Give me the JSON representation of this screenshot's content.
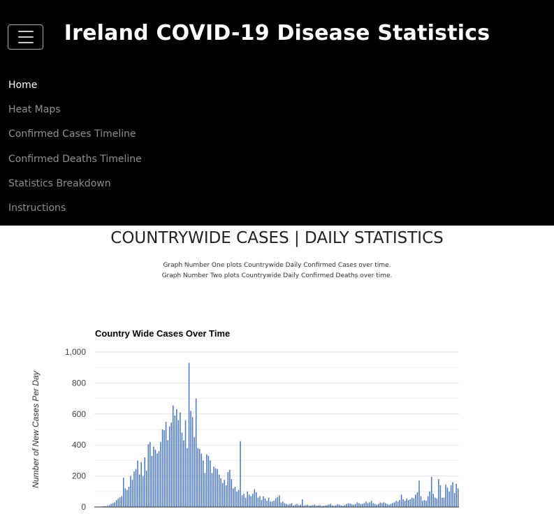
{
  "header": {
    "title": "Ireland COVID-19 Disease Statistics",
    "menu_icon": "hamburger-menu-icon"
  },
  "nav": {
    "items": [
      {
        "label": "Home",
        "active": true
      },
      {
        "label": "Heat Maps"
      },
      {
        "label": "Confirmed Cases Timeline"
      },
      {
        "label": "Confirmed Deaths Timeline"
      },
      {
        "label": "Statistics Breakdown"
      },
      {
        "label": "Instructions"
      }
    ]
  },
  "main": {
    "heading": "COUNTRYWIDE CASES | DAILY STATISTICS",
    "description_line1": "Graph Number One plots Countrywide Daily Confirmed Cases over time.",
    "description_line2": "Graph Number Two plots Countrywide Daily Confirmed Deaths over time."
  },
  "colors": {
    "navbar_bg": "#000000",
    "bar": "#4a77c8",
    "grid": "#e3e3e3"
  },
  "chart_data": {
    "type": "bar",
    "title": "Country Wide Cases Over Time",
    "ylabel": "Number of New Cases Per Day",
    "ylim": [
      0,
      1000
    ],
    "yticks": [
      0,
      200,
      400,
      600,
      800,
      1000
    ],
    "ytick_labels": [
      "0",
      "200",
      "400",
      "600",
      "800",
      "1,000"
    ],
    "series": [
      {
        "values": [
          2,
          1,
          3,
          2,
          4,
          6,
          5,
          8,
          12,
          20,
          25,
          30,
          44,
          55,
          62,
          70,
          190,
          120,
          110,
          130,
          200,
          175,
          230,
          245,
          300,
          210,
          290,
          200,
          320,
          235,
          405,
          420,
          330,
          390,
          370,
          345,
          360,
          420,
          500,
          495,
          550,
          430,
          520,
          545,
          655,
          590,
          630,
          560,
          610,
          480,
          430,
          560,
          380,
          930,
          620,
          580,
          450,
          700,
          380,
          375,
          345,
          300,
          220,
          340,
          330,
          300,
          220,
          260,
          250,
          245,
          210,
          185,
          155,
          175,
          140,
          225,
          240,
          180,
          120,
          130,
          100,
          110,
          425,
          75,
          85,
          60,
          100,
          80,
          70,
          85,
          115,
          95,
          60,
          70,
          45,
          70,
          55,
          40,
          60,
          35,
          35,
          40,
          55,
          65,
          75,
          30,
          35,
          25,
          20,
          15,
          20,
          25,
          10,
          15,
          20,
          12,
          15,
          50,
          10,
          12,
          15,
          8,
          10,
          12,
          15,
          8,
          10,
          12,
          6,
          8,
          10,
          12,
          15,
          20,
          10,
          8,
          12,
          18,
          15,
          10,
          8,
          12,
          20,
          25,
          22,
          18,
          15,
          20,
          30,
          25,
          18,
          20,
          25,
          35,
          25,
          30,
          40,
          25,
          20,
          15,
          20,
          30,
          25,
          30,
          25,
          20,
          15,
          20,
          25,
          30,
          40,
          35,
          45,
          80,
          50,
          40,
          55,
          45,
          50,
          60,
          55,
          80,
          95,
          170,
          70,
          40,
          45,
          40,
          70,
          100,
          195,
          85,
          60,
          55,
          180,
          140,
          60,
          60,
          145,
          125,
          100,
          140,
          160,
          90,
          150,
          120
        ]
      }
    ]
  }
}
